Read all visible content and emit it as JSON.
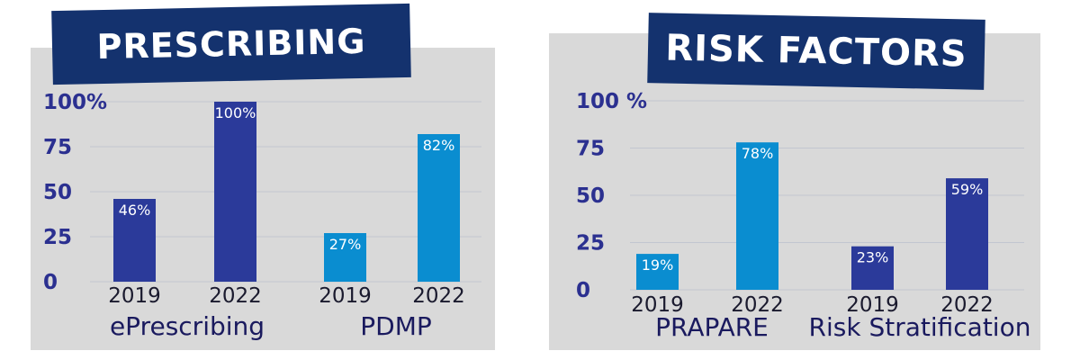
{
  "chart_data": [
    {
      "type": "bar",
      "title": "PRESCRIBING",
      "yticks": [
        "100%",
        "75",
        "50",
        "25",
        "0"
      ],
      "ylim": [
        0,
        100
      ],
      "grid": true,
      "groups": [
        "ePrescribing",
        "PDMP"
      ],
      "categories": [
        "2019",
        "2022",
        "2019",
        "2022"
      ],
      "values": [
        46,
        100,
        27,
        82
      ],
      "labels": [
        "46%",
        "100%",
        "27%",
        "82%"
      ],
      "colors": [
        "#2b3a9a",
        "#2b3a9a",
        "#0a8dd0",
        "#0a8dd0"
      ]
    },
    {
      "type": "bar",
      "title": "RISK FACTORS",
      "yticks": [
        "100 %",
        "75",
        "50",
        "25",
        "0"
      ],
      "ylim": [
        0,
        100
      ],
      "grid": true,
      "groups": [
        "PRAPARE",
        "Risk Stratification"
      ],
      "categories": [
        "2019",
        "2022",
        "2019",
        "2022"
      ],
      "values": [
        19,
        78,
        23,
        59
      ],
      "labels": [
        "19%",
        "78%",
        "23%",
        "59%"
      ],
      "colors": [
        "#0a8dd0",
        "#0a8dd0",
        "#2b3a9a",
        "#2b3a9a"
      ]
    }
  ]
}
